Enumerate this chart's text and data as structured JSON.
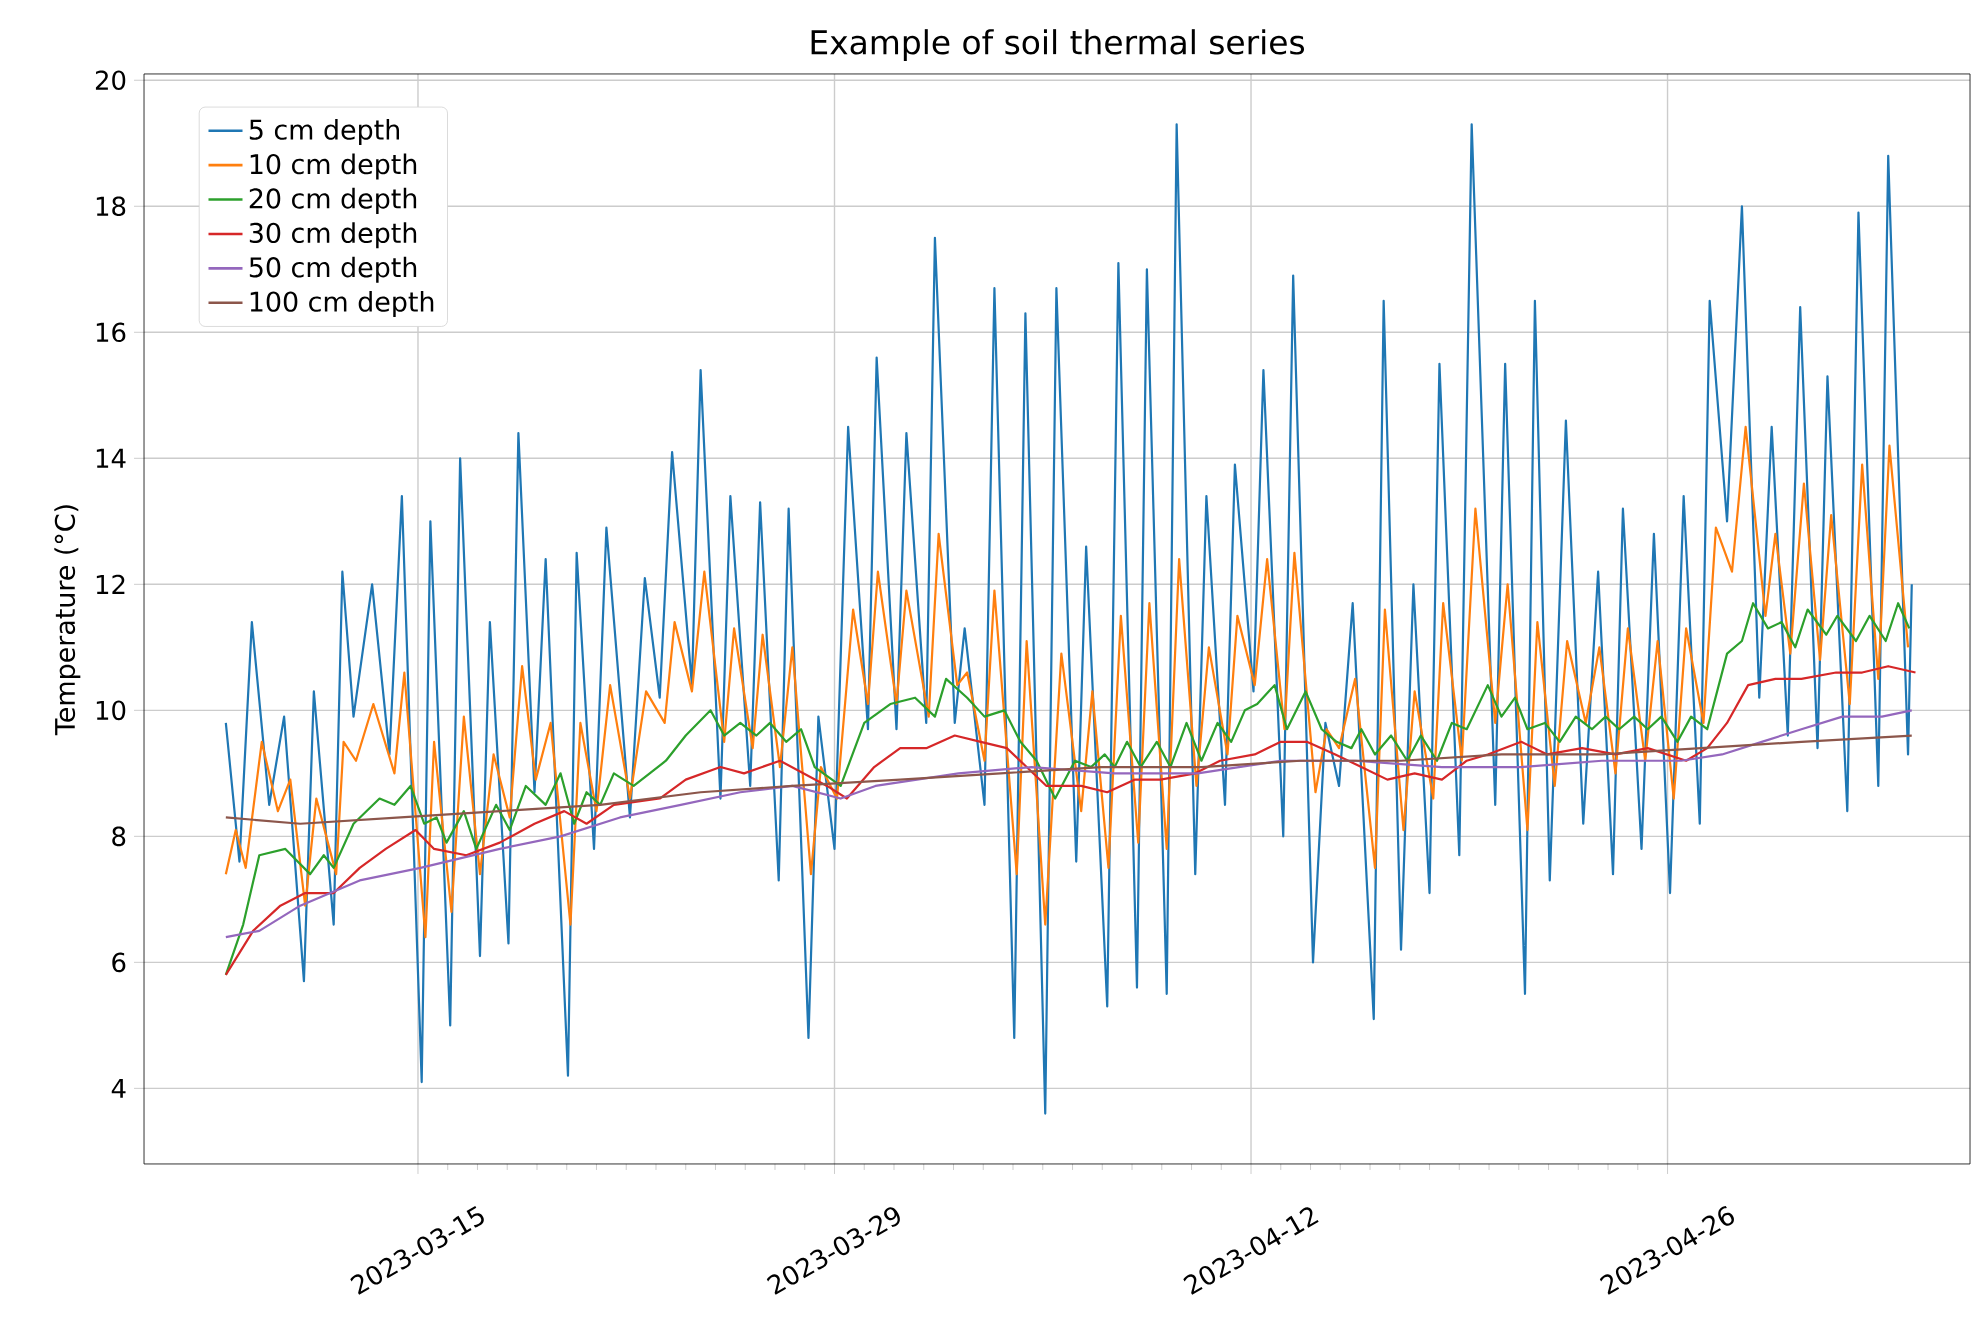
{
  "chart_data": {
    "type": "line",
    "title": "Example of soil thermal series",
    "ylabel": "Temperature (°C)",
    "xlim": [
      "2023-03-05T19:00",
      "2023-05-06T04:00"
    ],
    "ylim": [
      2.8,
      20.1
    ],
    "xticks": [
      "2023-03-15",
      "2023-03-29",
      "2023-04-12",
      "2023-04-26"
    ],
    "yticks": [
      4,
      6,
      8,
      10,
      12,
      14,
      16,
      18,
      20
    ],
    "grid": true,
    "legend": "top left",
    "series": [
      {
        "name": "5 cm depth",
        "color": "#1f77b4",
        "x": [
          "2023-03-08T13:00",
          "2023-03-09T00:00",
          "2023-03-09T10:00",
          "2023-03-10T00:00",
          "2023-03-10T12:00",
          "2023-03-11T04:00",
          "2023-03-11T12:00",
          "2023-03-12T04:00",
          "2023-03-12T11:00",
          "2023-03-12T20:00",
          "2023-03-13T11:00",
          "2023-03-14T01:00",
          "2023-03-14T11:00",
          "2023-03-15T03:00",
          "2023-03-15T10:00",
          "2023-03-16T02:00",
          "2023-03-16T10:00",
          "2023-03-17T02:00",
          "2023-03-17T10:00",
          "2023-03-18T01:00",
          "2023-03-18T09:00",
          "2023-03-18T22:00",
          "2023-03-19T07:00",
          "2023-03-20T01:00",
          "2023-03-20T08:00",
          "2023-03-20T22:00",
          "2023-03-21T08:00",
          "2023-03-22T03:00",
          "2023-03-22T15:00",
          "2023-03-23T03:00",
          "2023-03-23T13:00",
          "2023-03-24T05:00",
          "2023-03-24T12:00",
          "2023-03-25T04:00",
          "2023-03-25T12:00",
          "2023-03-26T04:00",
          "2023-03-26T12:00",
          "2023-03-27T03:00",
          "2023-03-27T11:00",
          "2023-03-28T03:00",
          "2023-03-28T11:00",
          "2023-03-29T00:00",
          "2023-03-29T11:00",
          "2023-03-30T03:00",
          "2023-03-30T10:00",
          "2023-03-31T02:00",
          "2023-03-31T10:00",
          "2023-04-01T02:00",
          "2023-04-01T09:00",
          "2023-04-02T01:00",
          "2023-04-02T09:00",
          "2023-04-03T01:00",
          "2023-04-03T09:00",
          "2023-04-04T01:00",
          "2023-04-04T10:00",
          "2023-04-05T02:00",
          "2023-04-05T11:00",
          "2023-04-06T03:00",
          "2023-04-06T11:00",
          "2023-04-07T04:00",
          "2023-04-07T13:00",
          "2023-04-08T04:00",
          "2023-04-08T12:00",
          "2023-04-09T04:00",
          "2023-04-09T12:00",
          "2023-04-10T03:00",
          "2023-04-10T12:00",
          "2023-04-11T03:00",
          "2023-04-11T11:00",
          "2023-04-12T02:00",
          "2023-04-12T10:00",
          "2023-04-13T02:00",
          "2023-04-13T10:00",
          "2023-04-14T02:00",
          "2023-04-14T12:00",
          "2023-04-14T23:00",
          "2023-04-15T10:00",
          "2023-04-16T03:00",
          "2023-04-16T11:00",
          "2023-04-17T01:00",
          "2023-04-17T11:00",
          "2023-04-18T00:00",
          "2023-04-18T08:00",
          "2023-04-19T00:00",
          "2023-04-19T10:00",
          "2023-04-20T05:00",
          "2023-04-20T13:00",
          "2023-04-21T05:00",
          "2023-04-21T13:00",
          "2023-04-22T01:00",
          "2023-04-22T14:00",
          "2023-04-23T04:00",
          "2023-04-23T16:00",
          "2023-04-24T04:00",
          "2023-04-24T12:00",
          "2023-04-25T03:00",
          "2023-04-25T13:00",
          "2023-04-26T02:00",
          "2023-04-26T13:00",
          "2023-04-27T02:00",
          "2023-04-27T10:00",
          "2023-04-28T00:00",
          "2023-04-28T12:00",
          "2023-04-29T02:00",
          "2023-04-29T12:00",
          "2023-04-30T01:00",
          "2023-04-30T11:00",
          "2023-05-01T01:00",
          "2023-05-01T09:00",
          "2023-05-02T01:00",
          "2023-05-02T10:00",
          "2023-05-03T02:00",
          "2023-05-03T10:00",
          "2023-05-04T02:00",
          "2023-05-04T05:00"
        ],
        "values": [
          9.8,
          7.6,
          11.4,
          8.5,
          9.9,
          5.7,
          10.3,
          6.6,
          12.2,
          9.9,
          12.0,
          9.3,
          13.4,
          4.1,
          13.0,
          5.0,
          14.0,
          6.1,
          11.4,
          6.3,
          14.4,
          8.7,
          12.4,
          4.2,
          12.5,
          7.8,
          12.9,
          8.3,
          12.1,
          10.2,
          14.1,
          10.4,
          15.4,
          8.6,
          13.4,
          8.8,
          13.3,
          7.3,
          13.2,
          4.8,
          9.9,
          7.8,
          14.5,
          9.7,
          15.6,
          9.7,
          14.4,
          9.8,
          17.5,
          9.8,
          11.3,
          8.5,
          16.7,
          4.8,
          16.3,
          3.6,
          16.7,
          7.6,
          12.6,
          5.3,
          17.1,
          5.6,
          17.0,
          5.5,
          19.3,
          7.4,
          13.4,
          8.5,
          13.9,
          10.3,
          15.4,
          8.0,
          16.9,
          6.0,
          9.8,
          8.8,
          11.7,
          5.1,
          16.5,
          6.2,
          12.0,
          7.1,
          15.5,
          7.7,
          19.3,
          8.5,
          15.5,
          5.5,
          16.5,
          7.3,
          14.6,
          8.2,
          12.2,
          7.4,
          13.2,
          7.8,
          12.8,
          7.1,
          13.4,
          8.2,
          16.5,
          13.0,
          18.0,
          10.2,
          14.5,
          9.6,
          16.4,
          9.4,
          15.3,
          8.4,
          17.9,
          8.8,
          18.8,
          9.3,
          12.0
        ]
      },
      {
        "name": "10 cm depth",
        "color": "#ff7f0e",
        "x": [
          "2023-03-08T13:00",
          "2023-03-08T21:00",
          "2023-03-09T05:00",
          "2023-03-09T18:00",
          "2023-03-10T07:00",
          "2023-03-10T17:00",
          "2023-03-11T05:00",
          "2023-03-11T14:00",
          "2023-03-12T06:00",
          "2023-03-12T12:00",
          "2023-03-12T22:00",
          "2023-03-13T12:00",
          "2023-03-14T05:00",
          "2023-03-14T13:00",
          "2023-03-15T06:00",
          "2023-03-15T13:00",
          "2023-03-16T03:00",
          "2023-03-16T13:00",
          "2023-03-17T02:00",
          "2023-03-17T13:00",
          "2023-03-18T02:00",
          "2023-03-18T12:00",
          "2023-03-18T23:00",
          "2023-03-19T11:00",
          "2023-03-20T03:00",
          "2023-03-20T11:00",
          "2023-03-21T00:00",
          "2023-03-21T11:00",
          "2023-03-22T03:00",
          "2023-03-22T16:00",
          "2023-03-23T07:00",
          "2023-03-23T15:00",
          "2023-03-24T05:00",
          "2023-03-24T15:00",
          "2023-03-25T07:00",
          "2023-03-25T15:00",
          "2023-03-26T06:00",
          "2023-03-26T14:00",
          "2023-03-27T04:00",
          "2023-03-27T14:00",
          "2023-03-28T05:00",
          "2023-03-28T13:00",
          "2023-03-29T02:00",
          "2023-03-29T15:00",
          "2023-03-30T03:00",
          "2023-03-30T11:00",
          "2023-03-31T02:00",
          "2023-03-31T10:00",
          "2023-04-01T04:00",
          "2023-04-01T12:00",
          "2023-04-02T03:00",
          "2023-04-02T11:00",
          "2023-04-03T01:00",
          "2023-04-03T09:00",
          "2023-04-04T03:00",
          "2023-04-04T11:00",
          "2023-04-05T02:00",
          "2023-04-05T15:00",
          "2023-04-06T07:00",
          "2023-04-06T16:00",
          "2023-04-07T05:00",
          "2023-04-07T15:00",
          "2023-04-08T05:00",
          "2023-04-08T14:00",
          "2023-04-09T04:00",
          "2023-04-09T14:00",
          "2023-04-10T04:00",
          "2023-04-10T14:00",
          "2023-04-11T05:00",
          "2023-04-11T13:00",
          "2023-04-12T03:00",
          "2023-04-12T13:00",
          "2023-04-13T03:00",
          "2023-04-13T11:00",
          "2023-04-14T04:00",
          "2023-04-14T13:00",
          "2023-04-14T23:00",
          "2023-04-15T12:00",
          "2023-04-16T04:00",
          "2023-04-16T12:00",
          "2023-04-17T03:00",
          "2023-04-17T12:00",
          "2023-04-18T03:00",
          "2023-04-18T11:00",
          "2023-04-19T02:00",
          "2023-04-19T13:00",
          "2023-04-20T05:00",
          "2023-04-20T15:00",
          "2023-04-21T07:00",
          "2023-04-21T15:00",
          "2023-04-22T05:00",
          "2023-04-22T15:00",
          "2023-04-23T06:00",
          "2023-04-23T17:00",
          "2023-04-24T06:00",
          "2023-04-24T16:00",
          "2023-04-25T06:00",
          "2023-04-25T16:00",
          "2023-04-26T05:00",
          "2023-04-26T15:00",
          "2023-04-27T05:00",
          "2023-04-27T15:00",
          "2023-04-28T04:00",
          "2023-04-28T15:00",
          "2023-04-29T07:00",
          "2023-04-29T15:00",
          "2023-04-30T03:00",
          "2023-04-30T14:00",
          "2023-05-01T03:00",
          "2023-05-01T12:00",
          "2023-05-02T03:00",
          "2023-05-02T13:00",
          "2023-05-03T02:00",
          "2023-05-03T11:00",
          "2023-05-04T02:00"
        ],
        "values": [
          7.4,
          8.1,
          7.5,
          9.5,
          8.4,
          8.9,
          6.9,
          8.6,
          7.4,
          9.5,
          9.2,
          10.1,
          9.0,
          10.6,
          6.4,
          9.5,
          6.8,
          9.9,
          7.4,
          9.3,
          8.3,
          10.7,
          8.9,
          9.8,
          6.6,
          9.8,
          8.4,
          10.4,
          8.6,
          10.3,
          9.8,
          11.4,
          10.3,
          12.2,
          9.5,
          11.3,
          9.4,
          11.2,
          9.1,
          11.0,
          7.4,
          9.1,
          8.6,
          11.6,
          10.1,
          12.2,
          10.1,
          11.9,
          9.9,
          12.8,
          10.4,
          10.6,
          9.2,
          11.9,
          7.4,
          11.1,
          6.6,
          10.9,
          8.4,
          10.3,
          7.5,
          11.5,
          7.9,
          11.7,
          7.8,
          12.4,
          8.8,
          11.0,
          9.3,
          11.5,
          10.4,
          12.4,
          9.7,
          12.5,
          8.7,
          9.7,
          9.4,
          10.5,
          7.5,
          11.6,
          8.1,
          10.3,
          8.6,
          11.7,
          9.2,
          13.2,
          9.8,
          12.0,
          8.1,
          11.4,
          8.8,
          11.1,
          9.8,
          11.0,
          9.0,
          11.3,
          9.2,
          11.1,
          8.6,
          11.3,
          9.8,
          12.9,
          12.2,
          14.5,
          11.5,
          12.8,
          10.9,
          13.6,
          10.8,
          13.1,
          10.1,
          13.9,
          10.5,
          14.2,
          11.0
        ]
      },
      {
        "name": "20 cm depth",
        "color": "#2ca02c",
        "x": [
          "2023-03-08T13:00",
          "2023-03-09T03:00",
          "2023-03-09T16:00",
          "2023-03-10T13:00",
          "2023-03-11T09:00",
          "2023-03-11T20:00",
          "2023-03-12T04:00",
          "2023-03-12T20:00",
          "2023-03-13T17:00",
          "2023-03-14T05:00",
          "2023-03-14T18:00",
          "2023-03-15T05:00",
          "2023-03-15T15:00",
          "2023-03-15T23:00",
          "2023-03-16T13:00",
          "2023-03-16T23:00",
          "2023-03-17T15:00",
          "2023-03-18T02:00",
          "2023-03-18T15:00",
          "2023-03-19T07:00",
          "2023-03-19T19:00",
          "2023-03-20T06:00",
          "2023-03-20T16:00",
          "2023-03-21T03:00",
          "2023-03-21T14:00",
          "2023-03-22T06:00",
          "2023-03-23T08:00",
          "2023-03-24T00:00",
          "2023-03-24T20:00",
          "2023-03-25T07:00",
          "2023-03-25T20:00",
          "2023-03-26T09:00",
          "2023-03-26T20:00",
          "2023-03-27T09:00",
          "2023-03-27T21:00",
          "2023-03-28T08:00",
          "2023-03-29T05:00",
          "2023-03-30T00:00",
          "2023-03-30T21:00",
          "2023-03-31T17:00",
          "2023-04-01T09:00",
          "2023-04-01T18:00",
          "2023-04-02T11:00",
          "2023-04-03T01:00",
          "2023-04-03T17:00",
          "2023-04-04T06:00",
          "2023-04-04T19:00",
          "2023-04-05T10:00",
          "2023-04-06T02:00",
          "2023-04-06T15:00",
          "2023-04-07T02:00",
          "2023-04-07T10:00",
          "2023-04-07T20:00",
          "2023-04-08T07:00",
          "2023-04-08T20:00",
          "2023-04-09T07:00",
          "2023-04-09T20:00",
          "2023-04-10T08:00",
          "2023-04-10T21:00",
          "2023-04-11T08:00",
          "2023-04-11T19:00",
          "2023-04-12T05:00",
          "2023-04-12T19:00",
          "2023-04-13T05:00",
          "2023-04-13T20:00",
          "2023-04-14T09:00",
          "2023-04-14T21:00",
          "2023-04-15T09:00",
          "2023-04-15T17:00",
          "2023-04-16T04:00",
          "2023-04-16T17:00",
          "2023-04-17T06:00",
          "2023-04-17T17:00",
          "2023-04-18T06:00",
          "2023-04-18T18:00",
          "2023-04-19T06:00",
          "2023-04-19T23:00",
          "2023-04-20T10:00",
          "2023-04-20T21:00",
          "2023-04-21T07:00",
          "2023-04-21T21:00",
          "2023-04-22T09:00",
          "2023-04-22T22:00",
          "2023-04-23T11:00",
          "2023-04-23T22:00",
          "2023-04-24T09:00",
          "2023-04-24T21:00",
          "2023-04-25T08:00",
          "2023-04-25T19:00",
          "2023-04-26T08:00",
          "2023-04-26T19:00",
          "2023-04-27T08:00",
          "2023-04-28T00:00",
          "2023-04-28T12:00",
          "2023-04-28T21:00",
          "2023-04-29T09:00",
          "2023-04-29T20:00",
          "2023-04-30T07:00",
          "2023-04-30T17:00",
          "2023-05-01T08:00",
          "2023-05-01T17:00",
          "2023-05-02T08:00",
          "2023-05-02T19:00",
          "2023-05-03T08:00",
          "2023-05-03T18:00",
          "2023-05-04T03:00"
        ],
        "values": [
          5.8,
          6.6,
          7.7,
          7.8,
          7.4,
          7.7,
          7.5,
          8.2,
          8.6,
          8.5,
          8.8,
          8.2,
          8.3,
          7.9,
          8.4,
          7.8,
          8.5,
          8.1,
          8.8,
          8.5,
          9.0,
          8.2,
          8.7,
          8.5,
          9.0,
          8.8,
          9.2,
          9.6,
          10.0,
          9.6,
          9.8,
          9.6,
          9.8,
          9.5,
          9.7,
          9.1,
          8.8,
          9.8,
          10.1,
          10.2,
          9.9,
          10.5,
          10.2,
          9.9,
          10.0,
          9.5,
          9.2,
          8.6,
          9.2,
          9.1,
          9.3,
          9.1,
          9.5,
          9.1,
          9.5,
          9.1,
          9.8,
          9.2,
          9.8,
          9.5,
          10.0,
          10.1,
          10.4,
          9.7,
          10.3,
          9.7,
          9.5,
          9.4,
          9.7,
          9.3,
          9.6,
          9.2,
          9.6,
          9.2,
          9.8,
          9.7,
          10.4,
          9.9,
          10.2,
          9.7,
          9.8,
          9.5,
          9.9,
          9.7,
          9.9,
          9.7,
          9.9,
          9.7,
          9.9,
          9.5,
          9.9,
          9.7,
          10.9,
          11.1,
          11.7,
          11.3,
          11.4,
          11.0,
          11.6,
          11.2,
          11.5,
          11.1,
          11.5,
          11.1,
          11.7,
          11.3
        ]
      },
      {
        "name": "30 cm depth",
        "color": "#d62728",
        "x": [
          "2023-03-08T13:00",
          "2023-03-09T11:00",
          "2023-03-10T09:00",
          "2023-03-11T05:00",
          "2023-03-12T04:00",
          "2023-03-13T01:00",
          "2023-03-13T22:00",
          "2023-03-14T22:00",
          "2023-03-15T13:00",
          "2023-03-16T15:00",
          "2023-03-17T18:00",
          "2023-03-18T22:00",
          "2023-03-19T22:00",
          "2023-03-20T16:00",
          "2023-03-21T14:00",
          "2023-03-23T03:00",
          "2023-03-24T00:00",
          "2023-03-25T04:00",
          "2023-03-25T23:00",
          "2023-03-27T04:00",
          "2023-03-27T23:00",
          "2023-03-28T18:00",
          "2023-03-29T10:00",
          "2023-03-30T08:00",
          "2023-03-31T05:00",
          "2023-04-01T02:00",
          "2023-04-02T01:00",
          "2023-04-02T22:00",
          "2023-04-03T19:00",
          "2023-04-04T11:00",
          "2023-04-05T03:00",
          "2023-04-06T07:00",
          "2023-04-07T04:00",
          "2023-04-08T02:00",
          "2023-04-08T23:00",
          "2023-04-10T03:00",
          "2023-04-10T23:00",
          "2023-04-12T03:00",
          "2023-04-13T00:00",
          "2023-04-13T21:00",
          "2023-04-14T20:00",
          "2023-04-15T17:00",
          "2023-04-16T14:00",
          "2023-04-17T12:00",
          "2023-04-18T10:00",
          "2023-04-19T06:00",
          "2023-04-19T23:00",
          "2023-04-21T02:00",
          "2023-04-21T23:00",
          "2023-04-23T03:00",
          "2023-04-24T06:00",
          "2023-04-25T08:00",
          "2023-04-26T15:00",
          "2023-04-27T08:00",
          "2023-04-28T00:00",
          "2023-04-28T17:00",
          "2023-04-29T15:00",
          "2023-04-30T12:00",
          "2023-05-01T16:00",
          "2023-05-02T13:00",
          "2023-05-03T10:00",
          "2023-05-04T08:00"
        ],
        "values": [
          5.8,
          6.5,
          6.9,
          7.1,
          7.1,
          7.5,
          7.8,
          8.1,
          7.8,
          7.7,
          7.9,
          8.2,
          8.4,
          8.2,
          8.5,
          8.6,
          8.9,
          9.1,
          9.0,
          9.2,
          9.0,
          8.8,
          8.6,
          9.1,
          9.4,
          9.4,
          9.6,
          9.5,
          9.4,
          9.1,
          8.8,
          8.8,
          8.7,
          8.9,
          8.9,
          9.0,
          9.2,
          9.3,
          9.5,
          9.5,
          9.3,
          9.1,
          8.9,
          9.0,
          8.9,
          9.2,
          9.3,
          9.5,
          9.3,
          9.4,
          9.3,
          9.4,
          9.2,
          9.4,
          9.8,
          10.4,
          10.5,
          10.5,
          10.6,
          10.6,
          10.7,
          10.6
        ]
      },
      {
        "name": "50 cm depth",
        "color": "#9467bd",
        "x": [
          "2023-03-08T13:00",
          "2023-03-09T16:00",
          "2023-03-11T01:00",
          "2023-03-13T01:00",
          "2023-03-15T02:00",
          "2023-03-17T18:00",
          "2023-03-19T19:00",
          "2023-03-21T19:00",
          "2023-03-23T20:00",
          "2023-03-25T20:00",
          "2023-03-27T14:00",
          "2023-03-29T05:00",
          "2023-03-30T09:00",
          "2023-04-02T04:00",
          "2023-04-04T15:00",
          "2023-04-07T10:00",
          "2023-04-10T05:00",
          "2023-04-13T00:00",
          "2023-04-15T12:00",
          "2023-04-18T10:00",
          "2023-04-21T02:00",
          "2023-04-23T19:00",
          "2023-04-26T11:00",
          "2023-04-27T20:00",
          "2023-04-29T04:00",
          "2023-04-30T12:00",
          "2023-05-01T21:00",
          "2023-05-03T05:00",
          "2023-05-04T05:00"
        ],
        "values": [
          6.4,
          6.5,
          6.9,
          7.3,
          7.5,
          7.8,
          8.0,
          8.3,
          8.5,
          8.7,
          8.8,
          8.6,
          8.8,
          9.0,
          9.1,
          9.0,
          9.0,
          9.2,
          9.2,
          9.1,
          9.1,
          9.2,
          9.2,
          9.3,
          9.5,
          9.7,
          9.9,
          9.9,
          10.0
        ]
      },
      {
        "name": "100 cm depth",
        "color": "#8c564b",
        "x": [
          "2023-03-08T13:00",
          "2023-03-11T01:00",
          "2023-03-14T10:00",
          "2023-03-17T18:00",
          "2023-03-21T03:00",
          "2023-03-24T12:00",
          "2023-03-27T14:00",
          "2023-03-31T05:00",
          "2023-04-03T14:00",
          "2023-04-06T23:00",
          "2023-04-10T08:00",
          "2023-04-13T16:00",
          "2023-04-17T01:00",
          "2023-04-20T10:00",
          "2023-04-23T19:00",
          "2023-04-27T03:00",
          "2023-04-30T12:00",
          "2023-05-04T05:00"
        ],
        "values": [
          8.3,
          8.2,
          8.3,
          8.4,
          8.5,
          8.7,
          8.8,
          8.9,
          9.0,
          9.1,
          9.1,
          9.2,
          9.2,
          9.3,
          9.3,
          9.4,
          9.5,
          9.6
        ]
      }
    ]
  }
}
